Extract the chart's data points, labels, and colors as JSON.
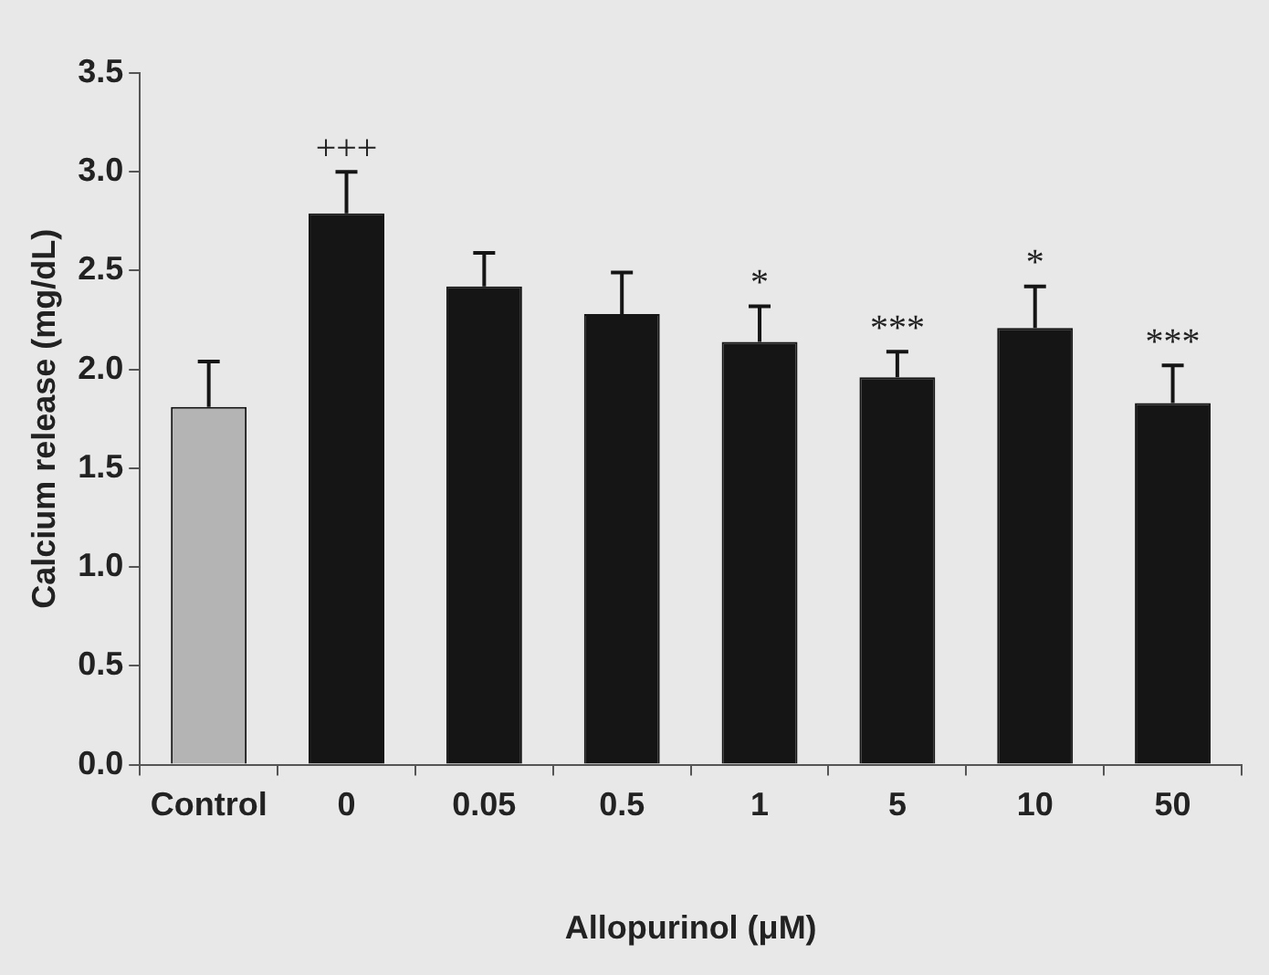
{
  "chart_data": {
    "type": "bar",
    "xlabel": "Allopurinol (μM)",
    "ylabel": "Calcium release (mg/dL)",
    "categories": [
      "Control",
      "0",
      "0.05",
      "0.5",
      "1",
      "5",
      "10",
      "50"
    ],
    "values": [
      1.81,
      2.79,
      2.42,
      2.28,
      2.14,
      1.96,
      2.21,
      1.83
    ],
    "errors": [
      0.23,
      0.21,
      0.17,
      0.21,
      0.18,
      0.13,
      0.21,
      0.19
    ],
    "colors": [
      "#b4b4b4",
      "#151515",
      "#151515",
      "#151515",
      "#151515",
      "#151515",
      "#151515",
      "#151515"
    ],
    "ylim": [
      0,
      3.5
    ],
    "yticks": [
      {
        "value": 0,
        "label": "0.0"
      },
      0.5,
      {
        "value": 1,
        "label": "1.0"
      },
      1.5,
      {
        "value": 2,
        "label": "2.0"
      },
      2.5,
      {
        "value": 3,
        "label": "3.0"
      },
      3.5
    ],
    "annotations": [
      {
        "text": "+++",
        "x": "0",
        "y": 3.0
      },
      {
        "text": "*",
        "x": "1",
        "y": 2.32
      },
      {
        "text": "***",
        "x": "5",
        "y": 2.09
      },
      {
        "text": "*",
        "x": "10",
        "y": 2.42
      },
      {
        "text": "***",
        "x": "50",
        "y": 2.02
      }
    ],
    "grid": false,
    "legend": false
  }
}
